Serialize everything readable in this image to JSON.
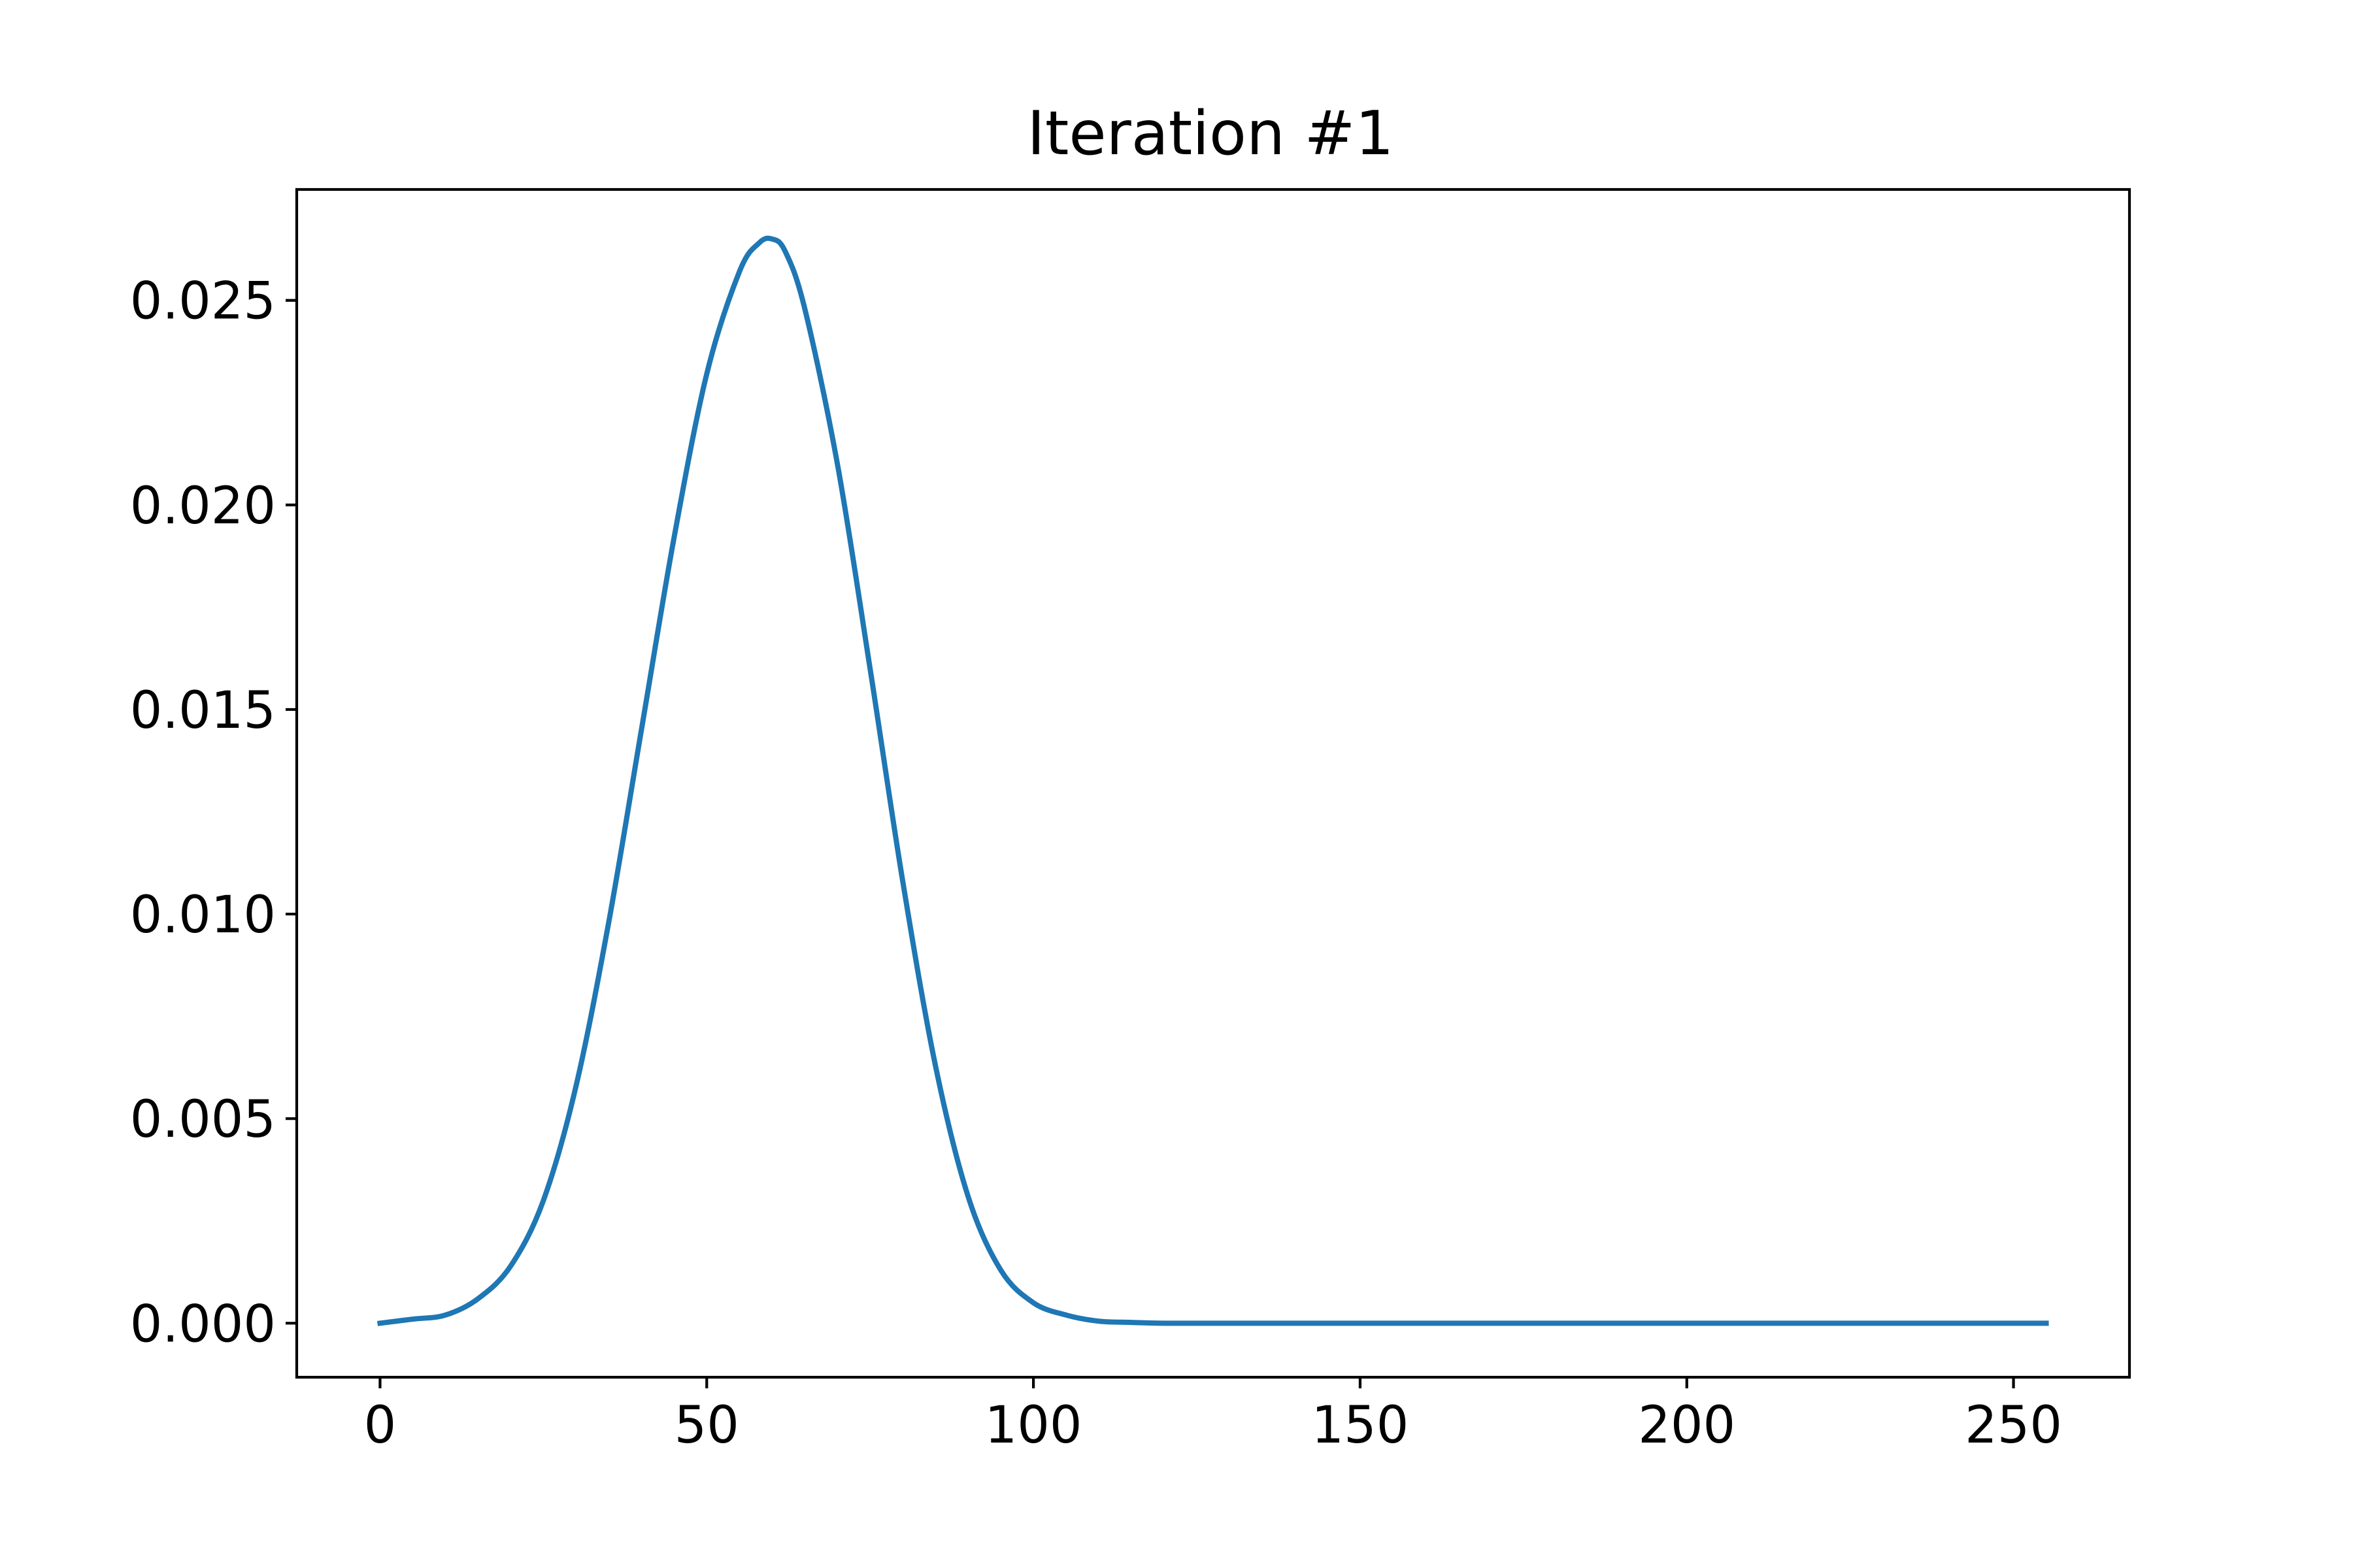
{
  "chart_data": {
    "type": "line",
    "title": "Iteration #1",
    "xlabel": "",
    "ylabel": "",
    "xlim": [
      -12.75,
      267.75
    ],
    "ylim": [
      -0.00132,
      0.02771
    ],
    "x_ticks": [
      0,
      50,
      100,
      150,
      200,
      250
    ],
    "x_tick_labels": [
      "0",
      "50",
      "100",
      "150",
      "200",
      "250"
    ],
    "y_ticks": [
      0.0,
      0.005,
      0.01,
      0.015,
      0.02,
      0.025
    ],
    "y_tick_labels": [
      "0.000",
      "0.005",
      "0.010",
      "0.015",
      "0.020",
      "0.025"
    ],
    "grid": false,
    "legend": "none",
    "series": [
      {
        "color": "#1f77b4",
        "x": [
          0,
          5,
          10,
          15,
          20,
          25,
          30,
          35,
          40,
          45,
          50,
          55,
          58,
          60,
          62,
          65,
          70,
          75,
          80,
          85,
          90,
          95,
          100,
          105,
          110,
          115,
          120,
          130,
          140,
          150,
          175,
          200,
          225,
          255
        ],
        "y": [
          0.0,
          0.0001,
          0.0002,
          0.0006,
          0.0014,
          0.003,
          0.0058,
          0.0098,
          0.0145,
          0.0192,
          0.0232,
          0.0257,
          0.0264,
          0.0265,
          0.0262,
          0.0248,
          0.021,
          0.016,
          0.0108,
          0.0063,
          0.0031,
          0.0013,
          0.0005,
          0.0002,
          5e-05,
          2e-05,
          0.0,
          0.0,
          0.0,
          0.0,
          0.0,
          0.0,
          0.0,
          0.0
        ]
      }
    ]
  }
}
